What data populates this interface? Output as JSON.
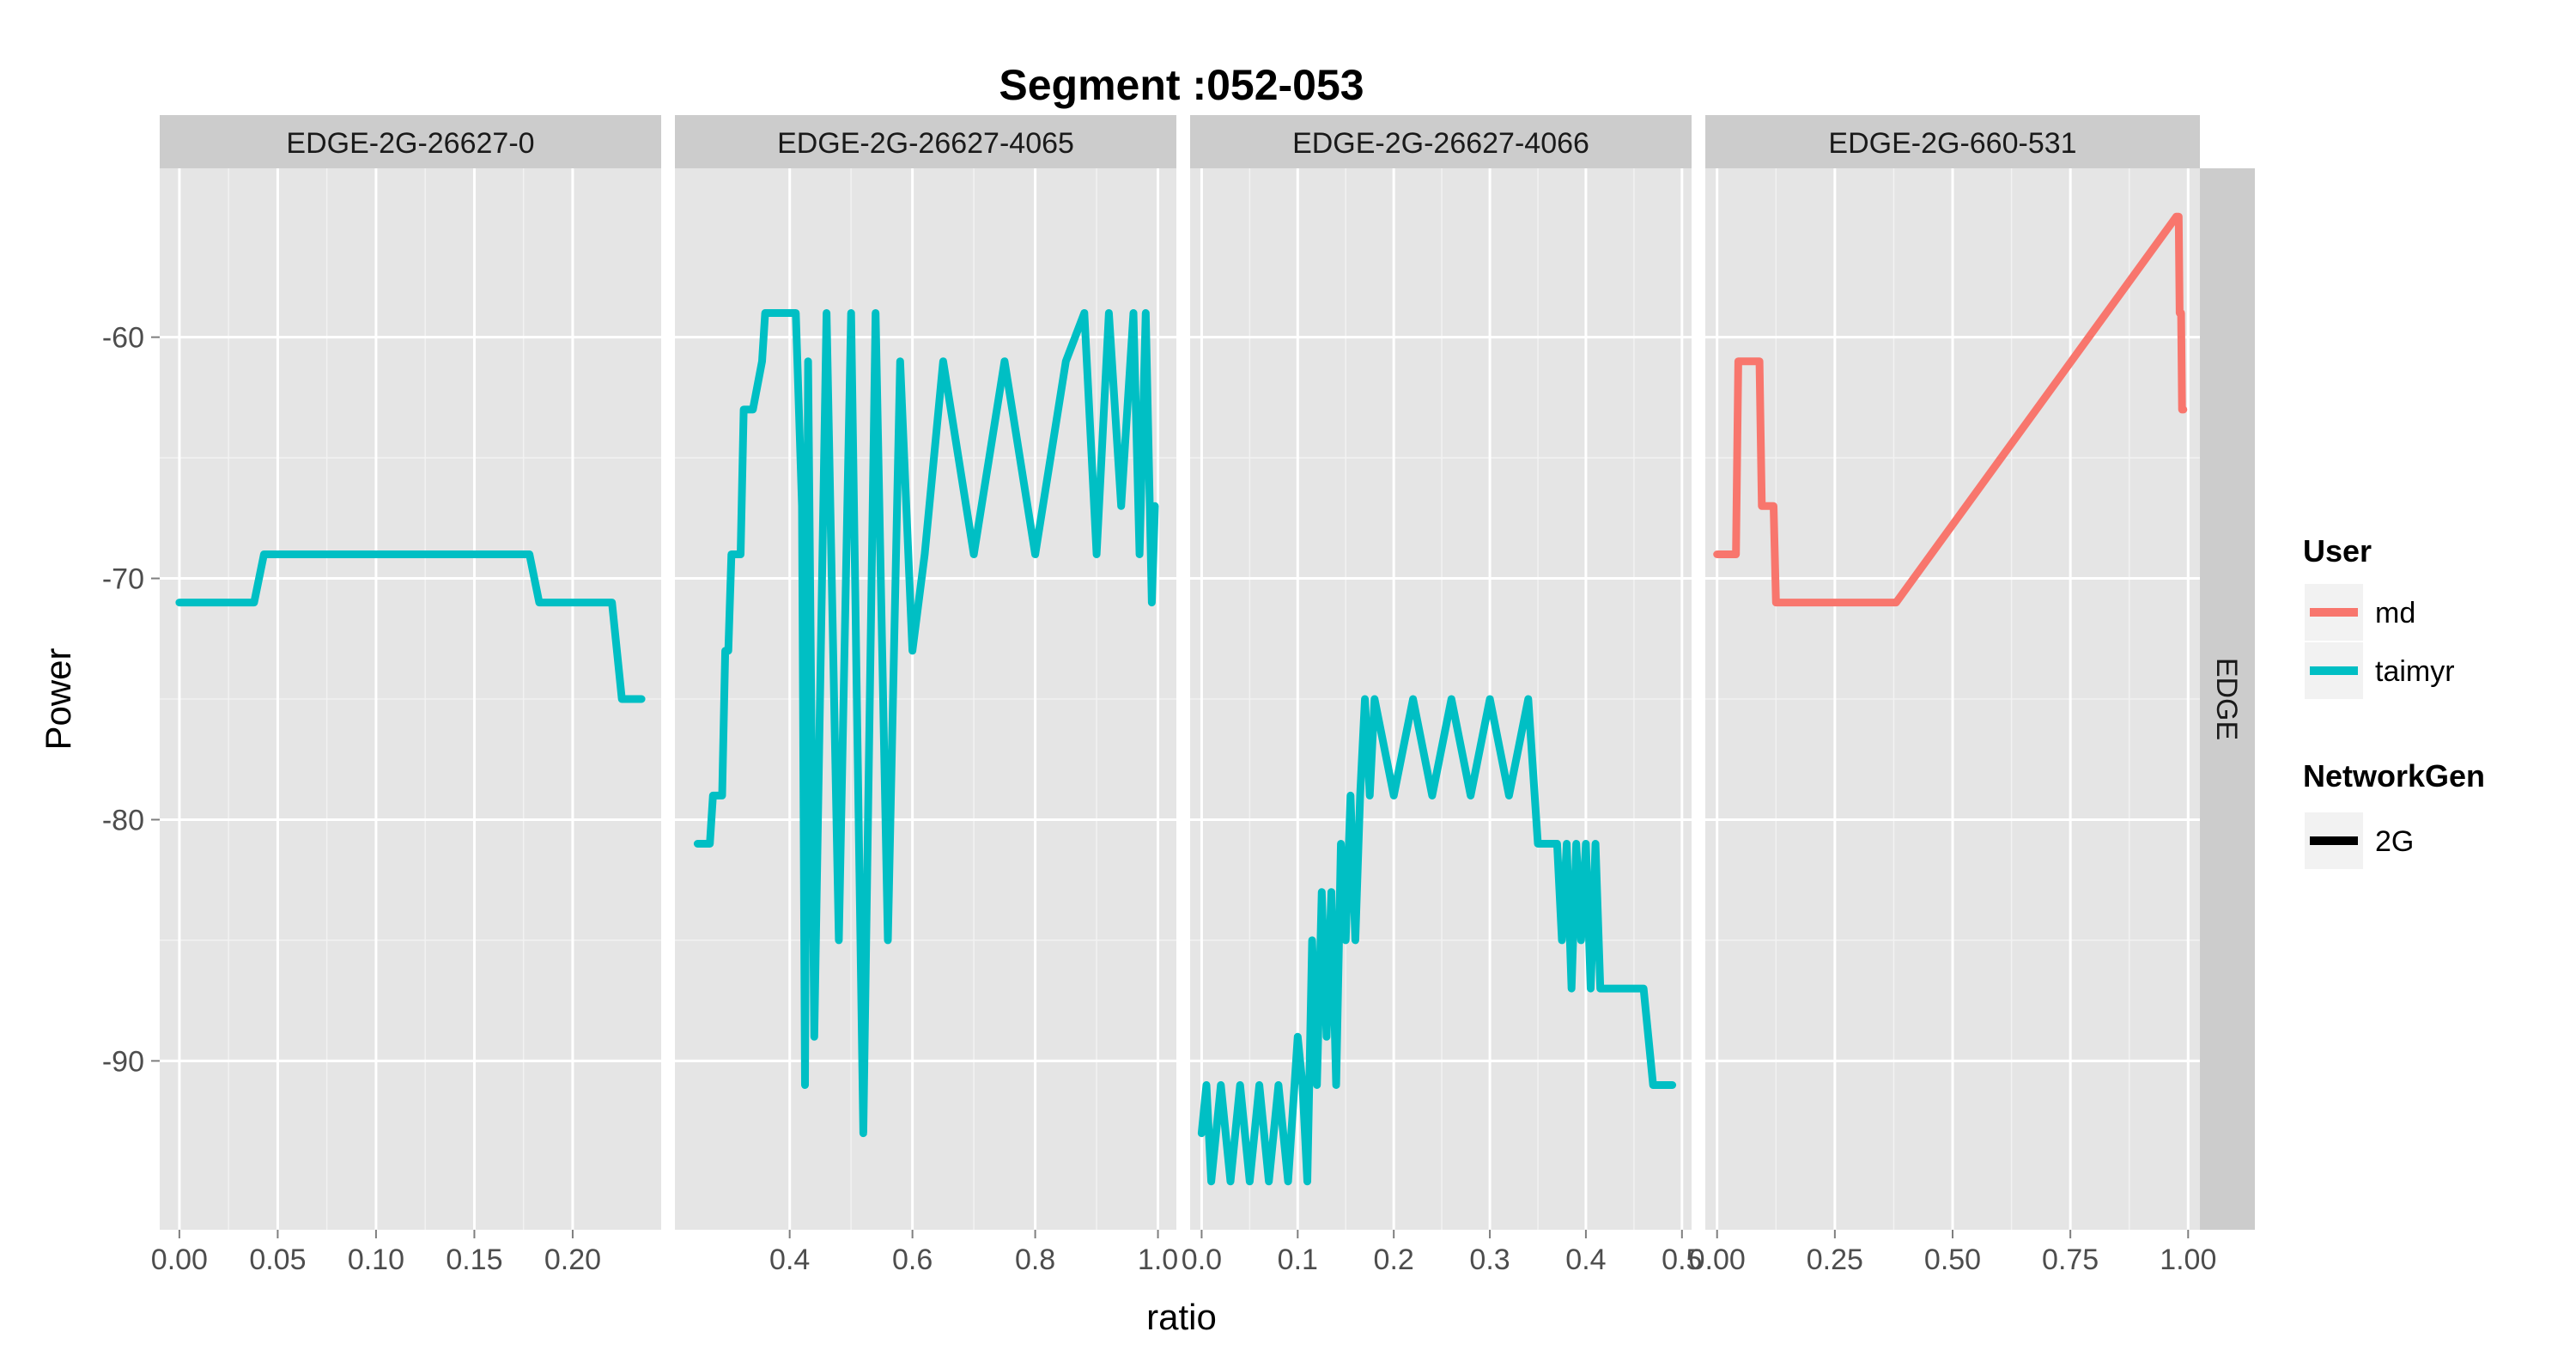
{
  "chart_data": {
    "type": "line",
    "title": "Segment :052-053",
    "xlabel": "ratio",
    "ylabel": "Power",
    "ylim": [
      -97,
      -53
    ],
    "yticks": [
      -90,
      -80,
      -70,
      -60
    ],
    "y_tick_labels": [
      "-90",
      "-80",
      "-70",
      "-60"
    ],
    "row_strip": "EDGE",
    "colors": {
      "md": "#F8766D",
      "taimyr": "#00BFC4"
    },
    "panels": [
      {
        "strip": "EDGE-2G-26627-0",
        "xlim": [
          -0.01,
          0.245
        ],
        "xticks": [
          0,
          0.05,
          0.1,
          0.15,
          0.2
        ],
        "x_tick_labels": [
          "0.00",
          "0.05",
          "0.10",
          "0.15",
          "0.20"
        ],
        "series": [
          {
            "user": "taimyr",
            "x": [
              0.0,
              0.038,
              0.043,
              0.178,
              0.183,
              0.22,
              0.225,
              0.235
            ],
            "y": [
              -71,
              -71,
              -69,
              -69,
              -71,
              -71,
              -75,
              -75
            ]
          }
        ]
      },
      {
        "strip": "EDGE-2G-26627-4065",
        "xlim": [
          0.213,
          1.03
        ],
        "xticks": [
          0.4,
          0.6,
          0.8,
          1.0
        ],
        "x_tick_labels": [
          "0.4",
          "0.6",
          "0.8",
          "1.0"
        ],
        "series": [
          {
            "user": "taimyr",
            "x": [
              0.25,
              0.27,
              0.275,
              0.29,
              0.295,
              0.3,
              0.305,
              0.32,
              0.325,
              0.335,
              0.34,
              0.355,
              0.36,
              0.37,
              0.375,
              0.385,
              0.39,
              0.405,
              0.41,
              0.42,
              0.425,
              0.43,
              0.44,
              0.46,
              0.48,
              0.5,
              0.52,
              0.54,
              0.56,
              0.58,
              0.6,
              0.62,
              0.65,
              0.7,
              0.75,
              0.8,
              0.85,
              0.88,
              0.9,
              0.92,
              0.94,
              0.96,
              0.97,
              0.98,
              0.99,
              0.995
            ],
            "y": [
              -81,
              -81,
              -79,
              -79,
              -73,
              -73,
              -69,
              -69,
              -63,
              -63,
              -63,
              -61,
              -59,
              -59,
              -59,
              -59,
              -59,
              -59,
              -59,
              -67,
              -91,
              -61,
              -89,
              -59,
              -85,
              -59,
              -93,
              -59,
              -85,
              -61,
              -73,
              -69,
              -61,
              -69,
              -61,
              -69,
              -61,
              -59,
              -69,
              -59,
              -67,
              -59,
              -69,
              -59,
              -71,
              -67
            ]
          }
        ]
      },
      {
        "strip": "EDGE-2G-26627-4066",
        "xlim": [
          -0.012,
          0.51
        ],
        "xticks": [
          0,
          0.1,
          0.2,
          0.3,
          0.4,
          0.5
        ],
        "x_tick_labels": [
          "0.0",
          "0.1",
          "0.2",
          "0.3",
          "0.4",
          "0.5"
        ],
        "series": [
          {
            "user": "taimyr",
            "x": [
              0.0,
              0.005,
              0.01,
              0.02,
              0.03,
              0.04,
              0.05,
              0.06,
              0.07,
              0.08,
              0.09,
              0.1,
              0.105,
              0.11,
              0.115,
              0.12,
              0.125,
              0.13,
              0.135,
              0.14,
              0.145,
              0.15,
              0.155,
              0.16,
              0.165,
              0.17,
              0.175,
              0.18,
              0.2,
              0.22,
              0.24,
              0.26,
              0.28,
              0.3,
              0.32,
              0.34,
              0.35,
              0.36,
              0.37,
              0.375,
              0.38,
              0.385,
              0.39,
              0.395,
              0.4,
              0.405,
              0.41,
              0.415,
              0.42,
              0.46,
              0.47,
              0.49
            ],
            "y": [
              -93,
              -91,
              -95,
              -91,
              -95,
              -91,
              -95,
              -91,
              -95,
              -91,
              -95,
              -89,
              -91,
              -95,
              -85,
              -91,
              -83,
              -89,
              -83,
              -91,
              -81,
              -85,
              -79,
              -85,
              -79,
              -75,
              -79,
              -75,
              -79,
              -75,
              -79,
              -75,
              -79,
              -75,
              -79,
              -75,
              -81,
              -81,
              -81,
              -85,
              -81,
              -87,
              -81,
              -85,
              -81,
              -87,
              -81,
              -87,
              -87,
              -87,
              -91,
              -91
            ]
          }
        ]
      },
      {
        "strip": "EDGE-2G-660-531",
        "xlim": [
          -0.025,
          1.025
        ],
        "xticks": [
          0,
          0.25,
          0.5,
          0.75,
          1.0
        ],
        "x_tick_labels": [
          "0.00",
          "0.25",
          "0.50",
          "0.75",
          "1.00"
        ],
        "series": [
          {
            "user": "md",
            "x": [
              0.0,
              0.04,
              0.045,
              0.09,
              0.095,
              0.12,
              0.125,
              0.14,
              0.145,
              0.38,
              0.975,
              0.98,
              0.982,
              0.985,
              0.987,
              0.99
            ],
            "y": [
              -69,
              -69,
              -61,
              -61,
              -67,
              -67,
              -71,
              -71,
              -71,
              -71,
              -55,
              -55,
              -59,
              -59,
              -63,
              -63
            ]
          }
        ]
      }
    ],
    "legend": {
      "user_title": "User",
      "users": [
        {
          "label": "md",
          "key": "md"
        },
        {
          "label": "taimyr",
          "key": "taimyr"
        }
      ],
      "networkgen_title": "NetworkGen",
      "networkgen": [
        {
          "label": "2G"
        }
      ]
    }
  }
}
